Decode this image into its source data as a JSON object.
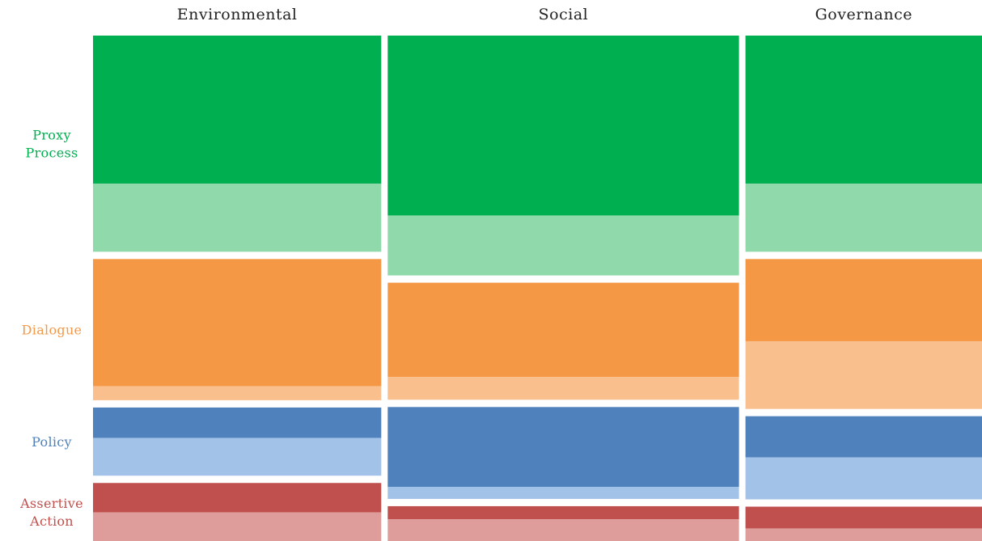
{
  "chart_data": {
    "type": "mosaic",
    "title": "",
    "columns": [
      {
        "label": "Environmental",
        "width": 0.329
      },
      {
        "label": "Social",
        "width": 0.401
      },
      {
        "label": "Governance",
        "width": 0.27
      }
    ],
    "row_groups": [
      {
        "label": "Proxy Process",
        "lines": [
          "Proxy",
          "Process"
        ],
        "dark": "#00AF50",
        "light": "#90D9AA"
      },
      {
        "label": "Dialogue",
        "lines": [
          "Dialogue"
        ],
        "dark": "#F59846",
        "light": "#F9BF8D"
      },
      {
        "label": "Policy",
        "lines": [
          "Policy"
        ],
        "dark": "#4F81BD",
        "light": "#A3C2E7"
      },
      {
        "label": "Assertive Action",
        "lines": [
          "Assertive",
          "Action"
        ],
        "dark": "#C0504D",
        "light": "#DE9C9B"
      }
    ],
    "values": {
      "Environmental": [
        {
          "group": "Proxy Process",
          "dark": 0.306,
          "light": 0.141
        },
        {
          "group": "Dialogue",
          "dark": 0.263,
          "light": 0.029
        },
        {
          "group": "Policy",
          "dark": 0.063,
          "light": 0.078
        },
        {
          "group": "Assertive Action",
          "dark": 0.061,
          "light": 0.059
        }
      ],
      "Social": [
        {
          "group": "Proxy Process",
          "dark": 0.372,
          "light": 0.124
        },
        {
          "group": "Dialogue",
          "dark": 0.195,
          "light": 0.047
        },
        {
          "group": "Policy",
          "dark": 0.165,
          "light": 0.025
        },
        {
          "group": "Assertive Action",
          "dark": 0.027,
          "light": 0.046
        }
      ],
      "Governance": [
        {
          "group": "Proxy Process",
          "dark": 0.306,
          "light": 0.141
        },
        {
          "group": "Dialogue",
          "dark": 0.17,
          "light": 0.14
        },
        {
          "group": "Policy",
          "dark": 0.085,
          "light": 0.087
        },
        {
          "group": "Assertive Action",
          "dark": 0.045,
          "light": 0.026
        }
      ]
    },
    "grid": false,
    "legend": "none"
  }
}
